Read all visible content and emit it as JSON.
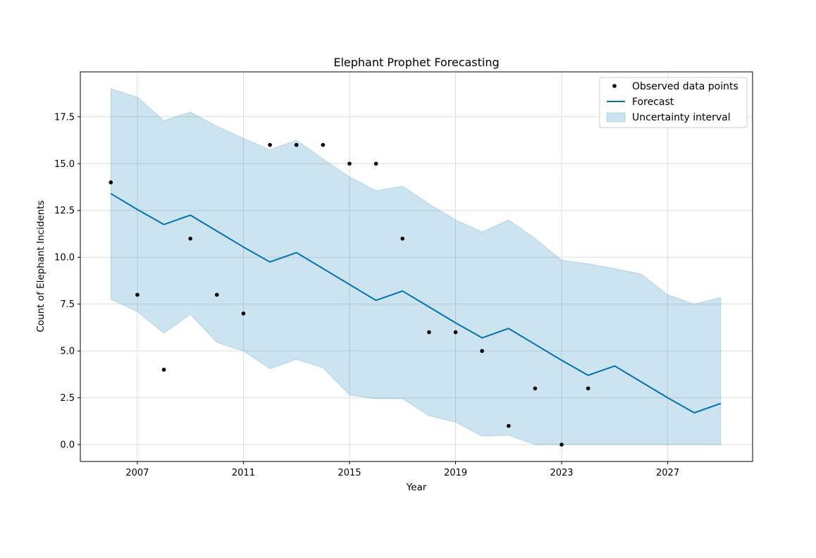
{
  "chart_data": {
    "type": "line",
    "title": "Elephant Prophet Forecasting",
    "xlabel": "Year",
    "ylabel": "Count of Elephant Incidents",
    "xlim": [
      2004.85,
      2030.2
    ],
    "ylim": [
      -0.9,
      19.9
    ],
    "grid": true,
    "x_ticks": [
      2007,
      2011,
      2015,
      2019,
      2023,
      2027
    ],
    "x_tick_labels": [
      "2007",
      "2011",
      "2015",
      "2019",
      "2023",
      "2027"
    ],
    "y_ticks": [
      0.0,
      2.5,
      5.0,
      7.5,
      10.0,
      12.5,
      15.0,
      17.5
    ],
    "y_tick_labels": [
      "0.0",
      "2.5",
      "5.0",
      "7.5",
      "10.0",
      "12.5",
      "15.0",
      "17.5"
    ],
    "legend_position": "top-right",
    "colors": {
      "forecast": "#0072b2",
      "band": "#0072b2",
      "points": "#000000",
      "grid": "#dedede"
    },
    "series": [
      {
        "name": "Observed data points",
        "kind": "scatter",
        "x": [
          2006,
          2007,
          2008,
          2009,
          2010,
          2011,
          2012,
          2013,
          2014,
          2015,
          2016,
          2017,
          2018,
          2019,
          2020,
          2021,
          2022,
          2023,
          2024
        ],
        "y": [
          14,
          8,
          4,
          11,
          8,
          7,
          16,
          16,
          16,
          15,
          15,
          11,
          6,
          6,
          5,
          1,
          3,
          0,
          3
        ]
      },
      {
        "name": "Forecast",
        "kind": "line",
        "x": [
          2006,
          2007,
          2008,
          2009,
          2010,
          2011,
          2012,
          2013,
          2014,
          2015,
          2016,
          2017,
          2018,
          2019,
          2020,
          2021,
          2022,
          2023,
          2024,
          2025,
          2026,
          2027,
          2028,
          2029
        ],
        "y": [
          13.4,
          12.55,
          11.75,
          12.25,
          11.4,
          10.55,
          9.75,
          10.25,
          9.4,
          8.55,
          7.7,
          8.2,
          7.35,
          6.5,
          5.7,
          6.2,
          5.35,
          4.5,
          3.7,
          4.2,
          3.35,
          2.5,
          1.7,
          2.2
        ]
      },
      {
        "name": "Uncertainty interval",
        "kind": "band",
        "x": [
          2006,
          2007,
          2008,
          2009,
          2010,
          2011,
          2012,
          2013,
          2014,
          2015,
          2016,
          2017,
          2018,
          2019,
          2020,
          2021,
          2022,
          2023,
          2024,
          2025,
          2026,
          2027,
          2028,
          2029
        ],
        "upper": [
          19.0,
          18.55,
          17.3,
          17.75,
          17.0,
          16.35,
          15.75,
          16.25,
          15.25,
          14.3,
          13.55,
          13.8,
          12.85,
          12.0,
          11.35,
          12.0,
          11.0,
          9.85,
          9.65,
          9.4,
          9.1,
          8.0,
          7.5,
          7.85
        ],
        "lower": [
          7.75,
          7.1,
          5.95,
          6.95,
          5.45,
          5.0,
          4.05,
          4.55,
          4.1,
          2.65,
          2.45,
          2.45,
          1.55,
          1.2,
          0.45,
          0.5,
          0.0,
          0.0,
          0.0,
          0.0,
          0.0,
          0.0,
          0.0,
          0.0
        ]
      }
    ]
  }
}
